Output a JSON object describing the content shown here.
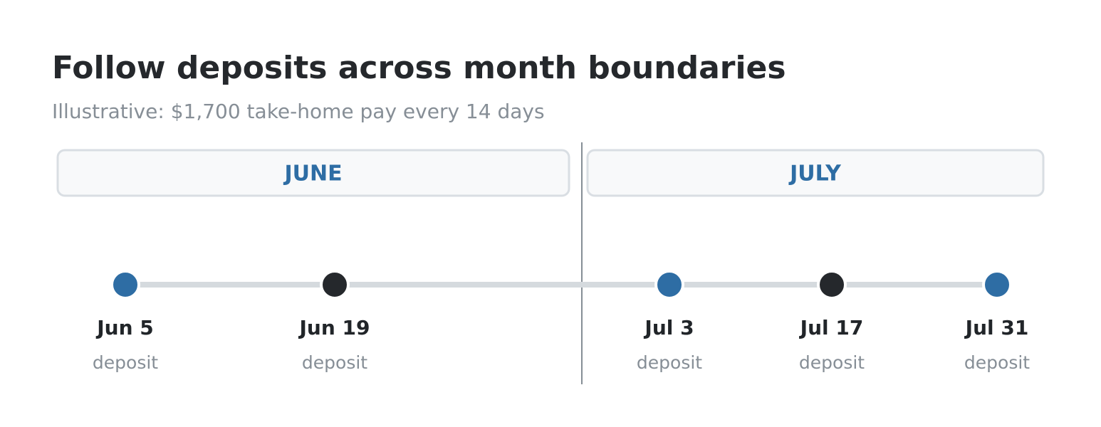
{
  "header": {
    "title": "Follow deposits across month boundaries",
    "subtitle": "Illustrative: $1,700 take-home pay every 14 days"
  },
  "months": [
    {
      "label": "JUNE"
    },
    {
      "label": "JULY"
    }
  ],
  "deposits": [
    {
      "date": "Jun 5",
      "label": "deposit",
      "color": "#2e6da4"
    },
    {
      "date": "Jun 19",
      "label": "deposit",
      "color": "#25282c"
    },
    {
      "date": "Jul 3",
      "label": "deposit",
      "color": "#2e6da4"
    },
    {
      "date": "Jul 17",
      "label": "deposit",
      "color": "#25282c"
    },
    {
      "date": "Jul 31",
      "label": "deposit",
      "color": "#2e6da4"
    }
  ]
}
